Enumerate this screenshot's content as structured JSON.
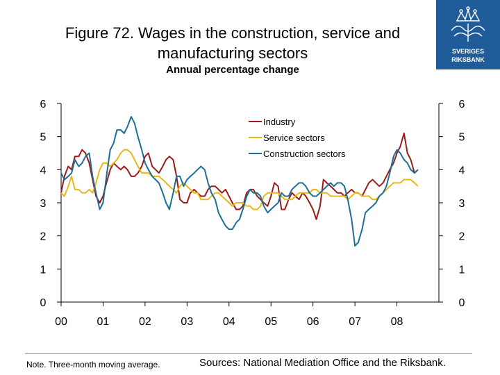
{
  "header": {
    "title_line1": "Figure 72. Wages in the construction, service and",
    "title_line2": "manufacturing sectors",
    "subtitle": "Annual percentage change"
  },
  "logo": {
    "line1": "SVERIGES",
    "line2": "RIKSBANK",
    "color": "#1f5c99"
  },
  "footer": {
    "note": "Note. Three-month moving average.",
    "source": "Sources: National Mediation Office and the Riksbank."
  },
  "chart_data": {
    "type": "line",
    "title": "",
    "xlabel": "",
    "ylabel": "",
    "xlim": [
      2000,
      2009.0
    ],
    "ylim": [
      0,
      6
    ],
    "y_ticks": [
      0,
      1,
      2,
      3,
      4,
      5,
      6
    ],
    "y_tick_labels": [
      "0",
      "1",
      "2",
      "3",
      "4",
      "5",
      "6"
    ],
    "x_ticks": [
      2000,
      2001,
      2002,
      2003,
      2004,
      2005,
      2006,
      2007,
      2008
    ],
    "x_tick_labels": [
      "00",
      "01",
      "02",
      "03",
      "04",
      "05",
      "06",
      "07",
      "08"
    ],
    "grid": false,
    "legend_position": "top-right",
    "series": [
      {
        "name": "Industry",
        "color": "#9b1b1b",
        "x": [
          2000.0,
          2000.08,
          2000.17,
          2000.25,
          2000.33,
          2000.42,
          2000.5,
          2000.58,
          2000.67,
          2000.75,
          2000.83,
          2000.92,
          2001.0,
          2001.08,
          2001.17,
          2001.25,
          2001.33,
          2001.42,
          2001.5,
          2001.58,
          2001.67,
          2001.75,
          2001.83,
          2001.92,
          2002.0,
          2002.08,
          2002.17,
          2002.25,
          2002.33,
          2002.42,
          2002.5,
          2002.58,
          2002.67,
          2002.75,
          2002.83,
          2002.92,
          2003.0,
          2003.08,
          2003.17,
          2003.25,
          2003.33,
          2003.42,
          2003.5,
          2003.58,
          2003.67,
          2003.75,
          2003.83,
          2003.92,
          2004.0,
          2004.08,
          2004.17,
          2004.25,
          2004.33,
          2004.42,
          2004.5,
          2004.58,
          2004.67,
          2004.75,
          2004.83,
          2004.92,
          2005.0,
          2005.08,
          2005.17,
          2005.25,
          2005.33,
          2005.42,
          2005.5,
          2005.58,
          2005.67,
          2005.75,
          2005.83,
          2005.92,
          2006.0,
          2006.08,
          2006.17,
          2006.25,
          2006.33,
          2006.42,
          2006.5,
          2006.58,
          2006.67,
          2006.75,
          2006.83,
          2006.92,
          2007.0,
          2007.08,
          2007.17,
          2007.25,
          2007.33,
          2007.42,
          2007.5,
          2007.58,
          2007.67,
          2007.75,
          2007.83,
          2007.92,
          2008.0,
          2008.08,
          2008.17,
          2008.25,
          2008.33,
          2008.42,
          2008.5
        ],
        "values": [
          3.3,
          3.8,
          4.1,
          4.0,
          4.4,
          4.4,
          4.6,
          4.5,
          4.2,
          3.7,
          3.2,
          3.0,
          3.2,
          3.6,
          4.0,
          4.2,
          4.1,
          4.0,
          4.1,
          4.0,
          3.8,
          3.8,
          3.9,
          4.1,
          4.4,
          4.5,
          4.1,
          4.0,
          3.9,
          4.1,
          4.3,
          4.4,
          4.3,
          3.8,
          3.1,
          3.0,
          3.0,
          3.3,
          3.4,
          3.3,
          3.2,
          3.2,
          3.4,
          3.5,
          3.5,
          3.4,
          3.3,
          3.4,
          3.2,
          3.0,
          2.8,
          2.8,
          2.9,
          3.3,
          3.4,
          3.4,
          3.2,
          3.1,
          3.0,
          2.9,
          3.2,
          3.6,
          3.5,
          2.8,
          2.8,
          3.1,
          3.3,
          3.2,
          3.1,
          3.3,
          3.2,
          3.0,
          2.8,
          2.5,
          2.9,
          3.7,
          3.6,
          3.5,
          3.4,
          3.3,
          3.3,
          3.2,
          3.3,
          3.4,
          3.3,
          3.3,
          3.2,
          3.4,
          3.6,
          3.7,
          3.6,
          3.5,
          3.6,
          3.8,
          4.0,
          4.2,
          4.5,
          4.7,
          5.1,
          4.5,
          4.3,
          3.9,
          4.0
        ]
      },
      {
        "name": "Service sectors",
        "color": "#e8b817",
        "x": [
          2000.0,
          2000.08,
          2000.17,
          2000.25,
          2000.33,
          2000.42,
          2000.5,
          2000.58,
          2000.67,
          2000.75,
          2000.83,
          2000.92,
          2001.0,
          2001.08,
          2001.17,
          2001.25,
          2001.33,
          2001.42,
          2001.5,
          2001.58,
          2001.67,
          2001.75,
          2001.83,
          2001.92,
          2002.0,
          2002.08,
          2002.17,
          2002.25,
          2002.33,
          2002.42,
          2002.5,
          2002.58,
          2002.67,
          2002.75,
          2002.83,
          2002.92,
          2003.0,
          2003.08,
          2003.17,
          2003.25,
          2003.33,
          2003.42,
          2003.5,
          2003.58,
          2003.67,
          2003.75,
          2003.83,
          2003.92,
          2004.0,
          2004.08,
          2004.17,
          2004.25,
          2004.33,
          2004.42,
          2004.5,
          2004.58,
          2004.67,
          2004.75,
          2004.83,
          2004.92,
          2005.0,
          2005.08,
          2005.17,
          2005.25,
          2005.33,
          2005.42,
          2005.5,
          2005.58,
          2005.67,
          2005.75,
          2005.83,
          2005.92,
          2006.0,
          2006.08,
          2006.17,
          2006.25,
          2006.33,
          2006.42,
          2006.5,
          2006.58,
          2006.67,
          2006.75,
          2006.83,
          2006.92,
          2007.0,
          2007.08,
          2007.17,
          2007.25,
          2007.33,
          2007.42,
          2007.5,
          2007.58,
          2007.67,
          2007.75,
          2007.83,
          2007.92,
          2008.0,
          2008.08,
          2008.17,
          2008.25,
          2008.33,
          2008.42,
          2008.5
        ],
        "values": [
          3.3,
          3.2,
          3.5,
          3.8,
          3.4,
          3.4,
          3.3,
          3.3,
          3.4,
          3.3,
          3.6,
          4.0,
          4.2,
          4.2,
          4.1,
          4.2,
          4.3,
          4.5,
          4.6,
          4.6,
          4.5,
          4.3,
          4.1,
          3.9,
          3.9,
          3.9,
          3.8,
          3.8,
          3.8,
          3.7,
          3.6,
          3.5,
          3.4,
          3.3,
          3.5,
          3.6,
          3.5,
          3.4,
          3.3,
          3.3,
          3.1,
          3.1,
          3.1,
          3.2,
          3.3,
          3.3,
          3.2,
          3.1,
          3.0,
          2.9,
          3.0,
          3.0,
          3.0,
          2.9,
          2.9,
          2.8,
          2.8,
          2.9,
          3.2,
          3.3,
          3.3,
          3.3,
          3.3,
          3.2,
          3.1,
          3.1,
          3.1,
          3.2,
          3.3,
          3.3,
          3.3,
          3.3,
          3.4,
          3.4,
          3.3,
          3.3,
          3.3,
          3.2,
          3.2,
          3.2,
          3.2,
          3.2,
          3.1,
          3.2,
          3.3,
          3.3,
          3.2,
          3.2,
          3.2,
          3.1,
          3.1,
          3.2,
          3.3,
          3.4,
          3.5,
          3.6,
          3.6,
          3.6,
          3.7,
          3.7,
          3.7,
          3.6,
          3.5
        ]
      },
      {
        "name": "Construction sectors",
        "color": "#1c6e96",
        "x": [
          2000.0,
          2000.08,
          2000.17,
          2000.25,
          2000.33,
          2000.42,
          2000.5,
          2000.58,
          2000.67,
          2000.75,
          2000.83,
          2000.92,
          2001.0,
          2001.08,
          2001.17,
          2001.25,
          2001.33,
          2001.42,
          2001.5,
          2001.58,
          2001.67,
          2001.75,
          2001.83,
          2001.92,
          2002.0,
          2002.08,
          2002.17,
          2002.25,
          2002.33,
          2002.42,
          2002.5,
          2002.58,
          2002.67,
          2002.75,
          2002.83,
          2002.92,
          2003.0,
          2003.08,
          2003.17,
          2003.25,
          2003.33,
          2003.42,
          2003.5,
          2003.58,
          2003.67,
          2003.75,
          2003.83,
          2003.92,
          2004.0,
          2004.08,
          2004.17,
          2004.25,
          2004.33,
          2004.42,
          2004.5,
          2004.58,
          2004.67,
          2004.75,
          2004.83,
          2004.92,
          2005.0,
          2005.08,
          2005.17,
          2005.25,
          2005.33,
          2005.42,
          2005.5,
          2005.58,
          2005.67,
          2005.75,
          2005.83,
          2005.92,
          2006.0,
          2006.08,
          2006.17,
          2006.25,
          2006.33,
          2006.42,
          2006.5,
          2006.58,
          2006.67,
          2006.75,
          2006.83,
          2006.92,
          2007.0,
          2007.08,
          2007.17,
          2007.25,
          2007.33,
          2007.42,
          2007.5,
          2007.58,
          2007.67,
          2007.75,
          2007.83,
          2007.92,
          2008.0,
          2008.08,
          2008.17,
          2008.25,
          2008.33,
          2008.42,
          2008.5
        ],
        "values": [
          3.9,
          3.7,
          3.8,
          3.9,
          4.3,
          4.1,
          4.2,
          4.4,
          4.5,
          3.8,
          3.3,
          2.8,
          3.0,
          3.8,
          4.6,
          4.8,
          5.2,
          5.2,
          5.1,
          5.3,
          5.6,
          5.4,
          5.0,
          4.6,
          4.2,
          4.0,
          3.8,
          3.7,
          3.6,
          3.3,
          3.0,
          2.8,
          3.3,
          3.8,
          3.8,
          3.5,
          3.7,
          3.8,
          3.9,
          4.0,
          4.1,
          4.0,
          3.6,
          3.3,
          3.1,
          2.7,
          2.5,
          2.3,
          2.2,
          2.2,
          2.4,
          2.5,
          2.8,
          3.2,
          3.4,
          3.3,
          3.3,
          3.2,
          2.9,
          2.7,
          2.8,
          2.9,
          3.0,
          3.3,
          3.2,
          3.2,
          3.4,
          3.5,
          3.6,
          3.6,
          3.5,
          3.3,
          3.2,
          3.2,
          3.3,
          3.4,
          3.5,
          3.6,
          3.5,
          3.6,
          3.6,
          3.5,
          3.1,
          2.5,
          1.7,
          1.8,
          2.2,
          2.7,
          2.8,
          2.9,
          3.0,
          3.2,
          3.3,
          3.5,
          3.9,
          4.4,
          4.6,
          4.5,
          4.3,
          4.2,
          4.0,
          3.9,
          4.0
        ]
      }
    ]
  }
}
